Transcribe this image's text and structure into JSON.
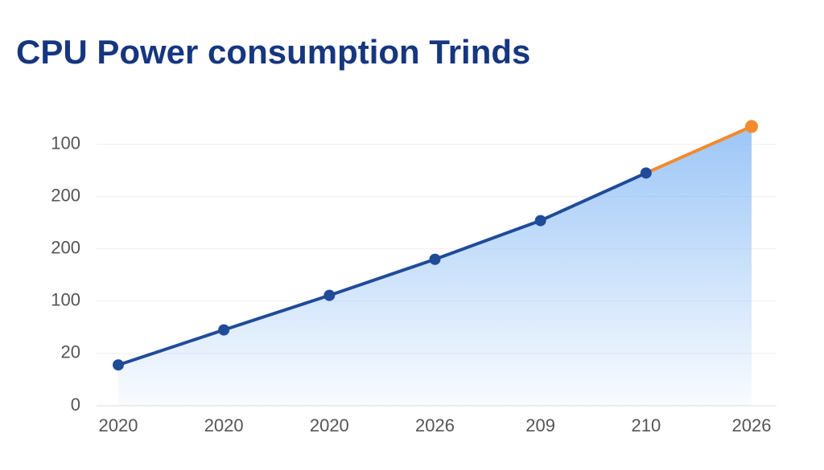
{
  "chart_data": {
    "type": "line",
    "title": "CPU Power consumption Trinds",
    "categories": [
      "2020",
      "2020",
      "2020",
      "2026",
      "209",
      "210",
      "2026"
    ],
    "series": [
      {
        "color": "#1f4b99",
        "values": [
          0.78,
          1.45,
          2.11,
          2.8,
          3.54,
          4.45,
          5.34
        ]
      }
    ],
    "projection_color": "#f28a2e",
    "area_color": "#8bbcf5",
    "ylim": [
      0,
      5.5
    ],
    "yticks": [
      {
        "value": 0,
        "label": "0"
      },
      {
        "value": 1,
        "label": "20"
      },
      {
        "value": 2,
        "label": "100"
      },
      {
        "value": 3,
        "label": "200"
      },
      {
        "value": 4,
        "label": "200"
      },
      {
        "value": 5,
        "label": "100"
      }
    ],
    "grid": true
  }
}
